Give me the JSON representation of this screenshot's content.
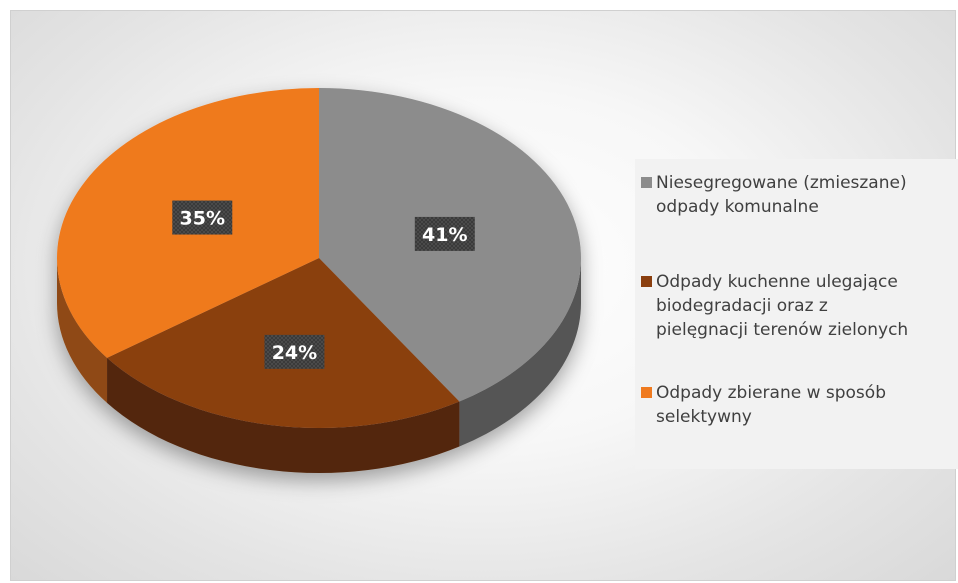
{
  "chart_data": {
    "type": "pie",
    "title": "",
    "categories": [
      "Niesegregowane (zmieszane) odpady komunalne",
      "Odpady kuchenne ulegające biodegradacji oraz z pielęgnacji terenów zielonych",
      "Odpady zbierane w sposób selektywny"
    ],
    "values": [
      41,
      24,
      35
    ],
    "data_labels": [
      "41%",
      "24%",
      "35%"
    ],
    "colors": [
      "#8c8c8c",
      "#8a3f0f",
      "#ef7a1f"
    ],
    "legend_position": "right",
    "style": "3d"
  },
  "legend": {
    "items": [
      {
        "lines": [
          "Niesegregowane (zmieszane)",
          "odpady komunalne"
        ],
        "color": "#8c8c8c"
      },
      {
        "lines": [
          "Odpady kuchenne ulegające",
          "biodegradacji oraz z",
          "pielęgnacji terenów zielonych"
        ],
        "color": "#8a3f0f"
      },
      {
        "lines": [
          "Odpady zbierane w sposób",
          "selektywny"
        ],
        "color": "#ef7a1f"
      }
    ]
  }
}
